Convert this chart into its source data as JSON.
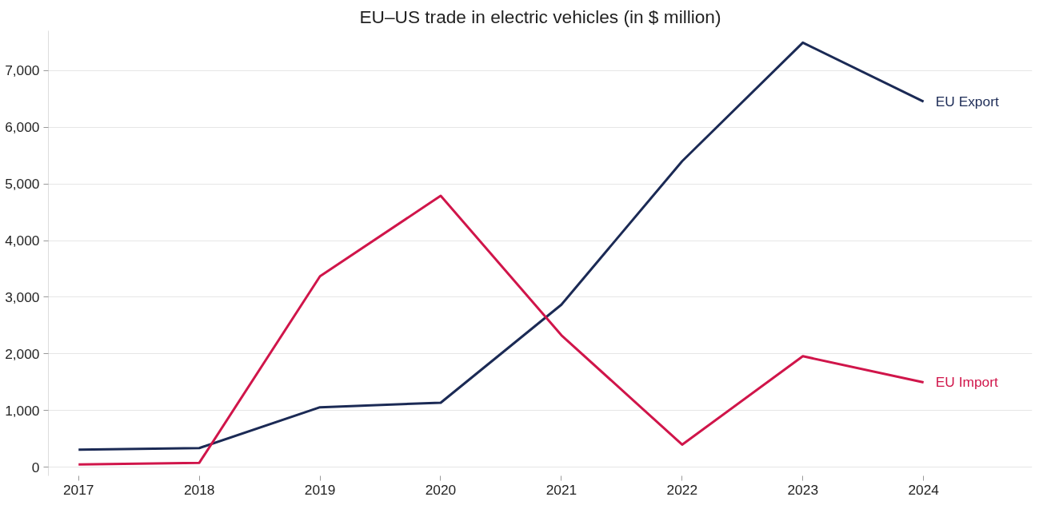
{
  "chart_data": {
    "type": "line",
    "title": "EU–US trade in electric vehicles (in $ million)",
    "categories": [
      "2017",
      "2018",
      "2019",
      "2020",
      "2021",
      "2022",
      "2023",
      "2024"
    ],
    "series": [
      {
        "name": "EU Export",
        "color": "#1b2a55",
        "values": [
          310,
          340,
          1060,
          1140,
          2870,
          5400,
          7490,
          6450
        ]
      },
      {
        "name": "EU Import",
        "color": "#d0154a",
        "values": [
          50,
          80,
          3370,
          4790,
          2330,
          400,
          1960,
          1500
        ]
      }
    ],
    "ylim": [
      -150,
      7700
    ],
    "yticks": [
      {
        "value": 0,
        "label": "0"
      },
      {
        "value": 1000,
        "label": "1,000"
      },
      {
        "value": 2000,
        "label": "2,000"
      },
      {
        "value": 3000,
        "label": "3,000"
      },
      {
        "value": 4000,
        "label": "4,000"
      },
      {
        "value": 5000,
        "label": "5,000"
      },
      {
        "value": 6000,
        "label": "6,000"
      },
      {
        "value": 7000,
        "label": "7,000"
      }
    ],
    "grid": "y",
    "legend": false,
    "marker": "none",
    "line_style": "solid"
  }
}
